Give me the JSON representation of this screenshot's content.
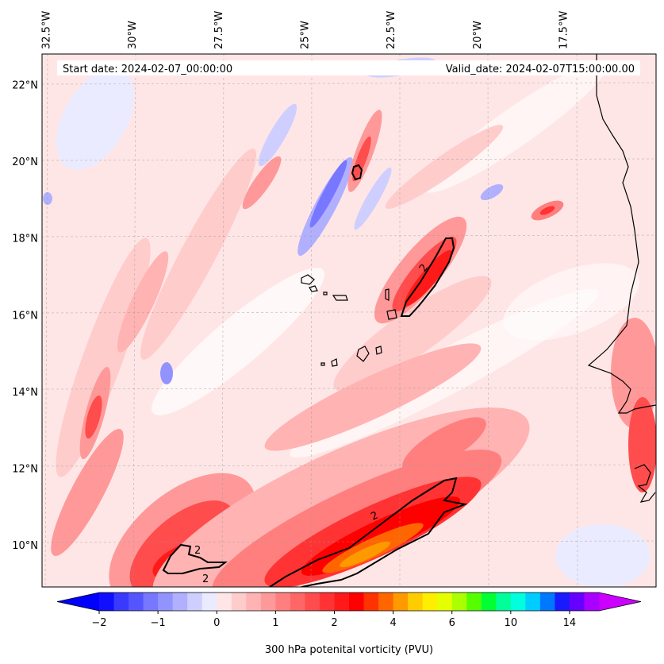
{
  "chart_data": {
    "type": "heatmap",
    "title": "",
    "header": {
      "start_date": "Start date: 2024-02-07_00:00:00",
      "valid_date": "Valid_date: 2024-02-07T15:00:00.00"
    },
    "colorbar_label": "300 hPa potenital vorticity (PVU)",
    "units": "PVU",
    "contour_level": 2,
    "contour_label": "2",
    "x_ticks": [
      "32.5°W",
      "30°W",
      "27.5°W",
      "25°W",
      "22.5°W",
      "20°W",
      "17.5°W"
    ],
    "x_tick_values": [
      -32.5,
      -30,
      -27.5,
      -25,
      -22.5,
      -20,
      -17.5
    ],
    "y_ticks": [
      "22°N",
      "20°N",
      "18°N",
      "16°N",
      "14°N",
      "12°N",
      "10°N"
    ],
    "y_tick_values": [
      22,
      20,
      18,
      16,
      14,
      12,
      10
    ],
    "lon_range": [
      -32.6,
      -14.8
    ],
    "lat_range": [
      8.9,
      22.8
    ],
    "grid": true,
    "colorbar_ticks": [
      "−2",
      "−1",
      "0",
      "1",
      "2",
      "4",
      "6",
      "10",
      "14"
    ],
    "colorbar_tick_values": [
      -2,
      -1,
      0,
      1,
      2,
      4,
      6,
      10,
      14
    ],
    "colorbar_levels": [
      -2,
      -1.75,
      -1.5,
      -1.25,
      -1,
      -0.75,
      -0.5,
      -0.25,
      0,
      0.25,
      0.5,
      0.75,
      1,
      1.25,
      1.5,
      1.75,
      2,
      2.5,
      3,
      3.5,
      4,
      4.5,
      5,
      5.5,
      6,
      7,
      8,
      9,
      10,
      11,
      12,
      13,
      14,
      15
    ],
    "colorbar_colors": [
      "#1010ff",
      "#3a3aff",
      "#5555ff",
      "#7777ff",
      "#9393ff",
      "#b0b0ff",
      "#cfcfff",
      "#ebebff",
      "#ffe6e6",
      "#ffcccc",
      "#ffb3b3",
      "#ff9999",
      "#ff7f7f",
      "#ff6666",
      "#ff4c4c",
      "#ff3333",
      "#ff1a1a",
      "#ff0000",
      "#ff3300",
      "#ff6600",
      "#ff9900",
      "#ffcc00",
      "#ffee00",
      "#e6ff00",
      "#aaff00",
      "#55ff00",
      "#00ff33",
      "#00ff99",
      "#00ffdd",
      "#00ccff",
      "#0077ff",
      "#1a1aff",
      "#6600ff",
      "#aa00ff"
    ],
    "colorbar_extend_min_color": "#0000ff",
    "colorbar_extend_max_color": "#cc00ff",
    "coastline_color": "#000000",
    "contour_color": "#000000"
  }
}
